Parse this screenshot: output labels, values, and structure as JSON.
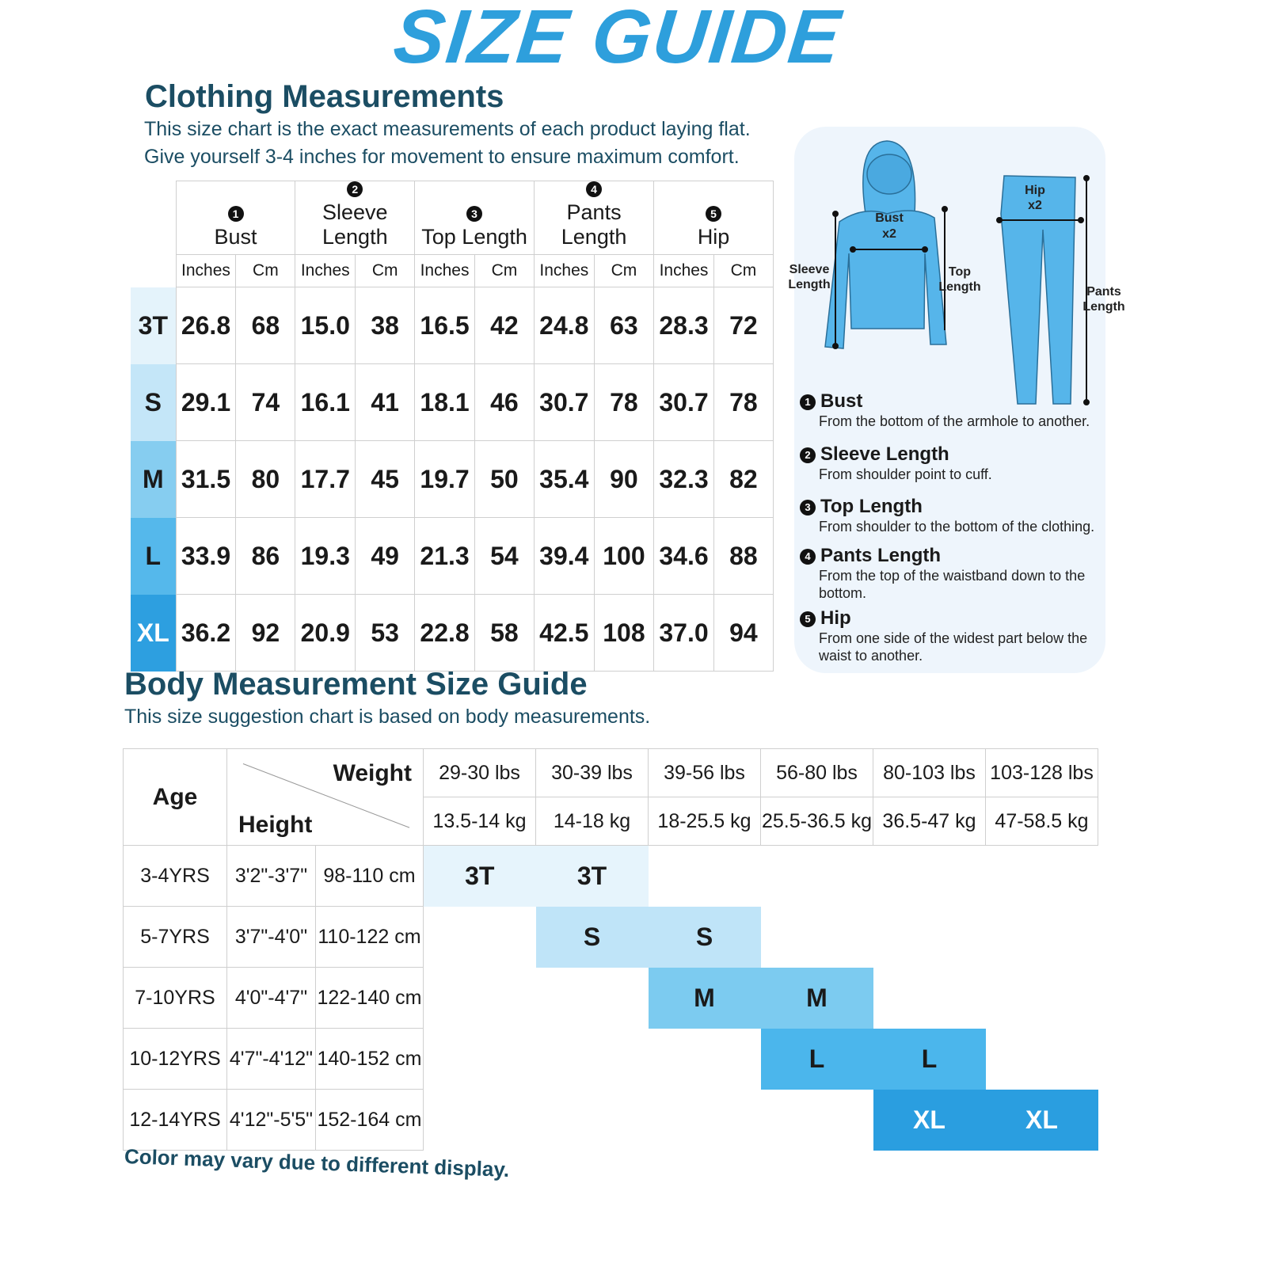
{
  "title": "SIZE GUIDE",
  "clothing": {
    "heading": "Clothing Measurements",
    "lines": [
      "This size chart is the exact measurements of each product laying flat.",
      "Give yourself 3-4 inches for movement to ensure maximum comfort."
    ],
    "groups": [
      {
        "num": "1",
        "label": "Bust"
      },
      {
        "num": "2",
        "label": "Sleeve Length"
      },
      {
        "num": "3",
        "label": "Top Length"
      },
      {
        "num": "4",
        "label": "Pants Length"
      },
      {
        "num": "5",
        "label": "Hip"
      }
    ],
    "units": [
      "Inches",
      "Cm"
    ],
    "rows": [
      {
        "size": "3T",
        "color": "#e4f3fb",
        "text": "#1a1a1a",
        "values": [
          "26.8",
          "68",
          "15.0",
          "38",
          "16.5",
          "42",
          "24.8",
          "63",
          "28.3",
          "72"
        ]
      },
      {
        "size": "S",
        "color": "#c4e6f8",
        "text": "#1a1a1a",
        "values": [
          "29.1",
          "74",
          "16.1",
          "41",
          "18.1",
          "46",
          "30.7",
          "78",
          "30.7",
          "78"
        ]
      },
      {
        "size": "M",
        "color": "#86cdf0",
        "text": "#1a1a1a",
        "values": [
          "31.5",
          "80",
          "17.7",
          "45",
          "19.7",
          "50",
          "35.4",
          "90",
          "32.3",
          "82"
        ]
      },
      {
        "size": "L",
        "color": "#55b8eb",
        "text": "#1a1a1a",
        "values": [
          "33.9",
          "86",
          "19.3",
          "49",
          "21.3",
          "54",
          "39.4",
          "100",
          "34.6",
          "88"
        ]
      },
      {
        "size": "XL",
        "color": "#2d9fe0",
        "text": "#ffffff",
        "values": [
          "36.2",
          "92",
          "20.9",
          "53",
          "22.8",
          "58",
          "42.5",
          "108",
          "37.0",
          "94"
        ]
      }
    ]
  },
  "diagram": {
    "bust": "Bust",
    "x2": "x2",
    "sleeve": [
      "Sleeve",
      "Length"
    ],
    "top": [
      "Top",
      "Length"
    ],
    "hip": "Hip",
    "pants": [
      "Pants",
      "Length"
    ],
    "nums": [
      "1",
      "2",
      "3",
      "4",
      "5"
    ],
    "descriptions": [
      {
        "num": "1",
        "title": "Bust",
        "text": "From the bottom of the armhole to another."
      },
      {
        "num": "2",
        "title": "Sleeve Length",
        "text": "From shoulder point to cuff."
      },
      {
        "num": "3",
        "title": "Top Length",
        "text": "From shoulder to the bottom of the clothing."
      },
      {
        "num": "4",
        "title": "Pants Length",
        "text": "From the top of the waistband down to the bottom."
      },
      {
        "num": "5",
        "title": "Hip",
        "text": "From one side of the widest part below the waist to another."
      }
    ]
  },
  "body": {
    "heading": "Body Measurement Size Guide",
    "subtitle": "This size suggestion chart is based on body measurements.",
    "age_label": "Age",
    "weight_label": "Weight",
    "height_label": "Height",
    "lbs": [
      "29-30 lbs",
      "30-39 lbs",
      "39-56 lbs",
      "56-80 lbs",
      "80-103 lbs",
      "103-128 lbs"
    ],
    "kg": [
      "13.5-14 kg",
      "14-18 kg",
      "18-25.5 kg",
      "25.5-36.5 kg",
      "36.5-47 kg",
      "47-58.5 kg"
    ],
    "rows": [
      {
        "age": "3-4YRS",
        "ft": "3'2\"-3'7\"",
        "cm": "98-110 cm",
        "size": "3T",
        "start": 0,
        "color": "#e6f4fc",
        "text": "#1a1a1a"
      },
      {
        "age": "5-7YRS",
        "ft": "3'7\"-4'0\"",
        "cm": "110-122 cm",
        "size": "S",
        "start": 1,
        "color": "#bfe4f8",
        "text": "#1a1a1a"
      },
      {
        "age": "7-10YRS",
        "ft": "4'0\"-4'7\"",
        "cm": "122-140 cm",
        "size": "M",
        "start": 2,
        "color": "#7ccbf0",
        "text": "#1a1a1a"
      },
      {
        "age": "10-12YRS",
        "ft": "4'7\"-4'12\"",
        "cm": "140-152 cm",
        "size": "L",
        "start": 3,
        "color": "#4bb6ec",
        "text": "#1a1a1a"
      },
      {
        "age": "12-14YRS",
        "ft": "4'12\"-5'5\"",
        "cm": "152-164 cm",
        "size": "XL",
        "start": 4,
        "color": "#2a9ee0",
        "text": "#ffffff"
      }
    ]
  },
  "footer": "Color may vary due to different display."
}
